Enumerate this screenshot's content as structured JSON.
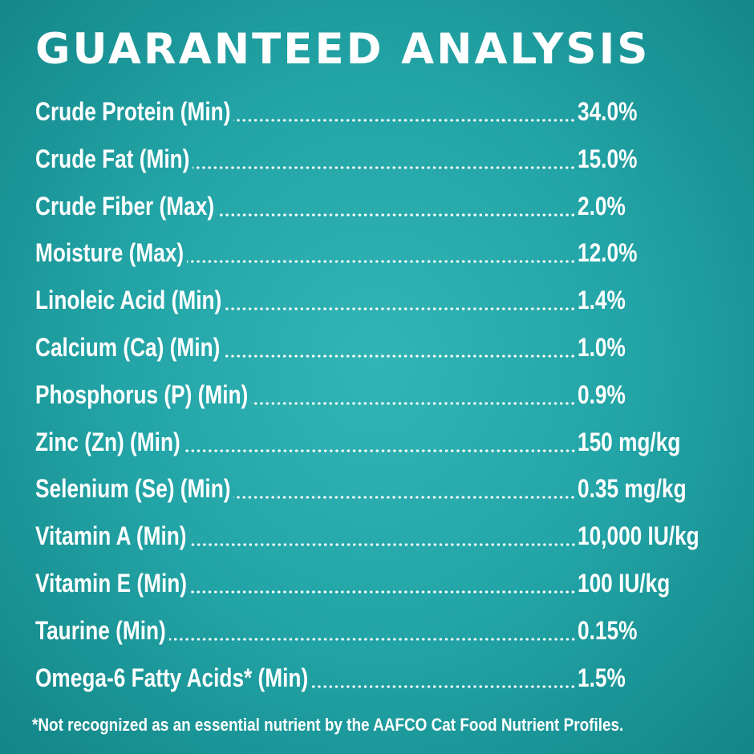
{
  "title": "GUARANTEED ANALYSIS",
  "rows": [
    {
      "label": "Crude Protein (Min)",
      "value": "34.0%"
    },
    {
      "label": "Crude Fat (Min)",
      "value": "15.0%"
    },
    {
      "label": "Crude Fiber (Max)",
      "value": "2.0%"
    },
    {
      "label": "Moisture (Max)",
      "value": "12.0%"
    },
    {
      "label": "Linoleic Acid (Min)",
      "value": "1.4%"
    },
    {
      "label": "Calcium (Ca) (Min)",
      "value": "1.0%"
    },
    {
      "label": "Phosphorus (P) (Min)",
      "value": "0.9%"
    },
    {
      "label": "Zinc (Zn) (Min)",
      "value": "150 mg/kg"
    },
    {
      "label": "Selenium (Se) (Min)",
      "value": "0.35 mg/kg"
    },
    {
      "label": "Vitamin A (Min)",
      "value": "10,000 IU/kg"
    },
    {
      "label": "Vitamin E (Min)",
      "value": "100 IU/kg"
    },
    {
      "label": "Taurine (Min)",
      "value": "0.15%"
    },
    {
      "label": "Omega-6 Fatty Acids* (Min)",
      "value": "1.5%"
    }
  ],
  "footnote": "*Not recognized as an essential nutrient by the AAFCO Cat Food Nutrient Profiles.",
  "colors": {
    "background": "#22a3a5",
    "text": "#ffffff"
  }
}
